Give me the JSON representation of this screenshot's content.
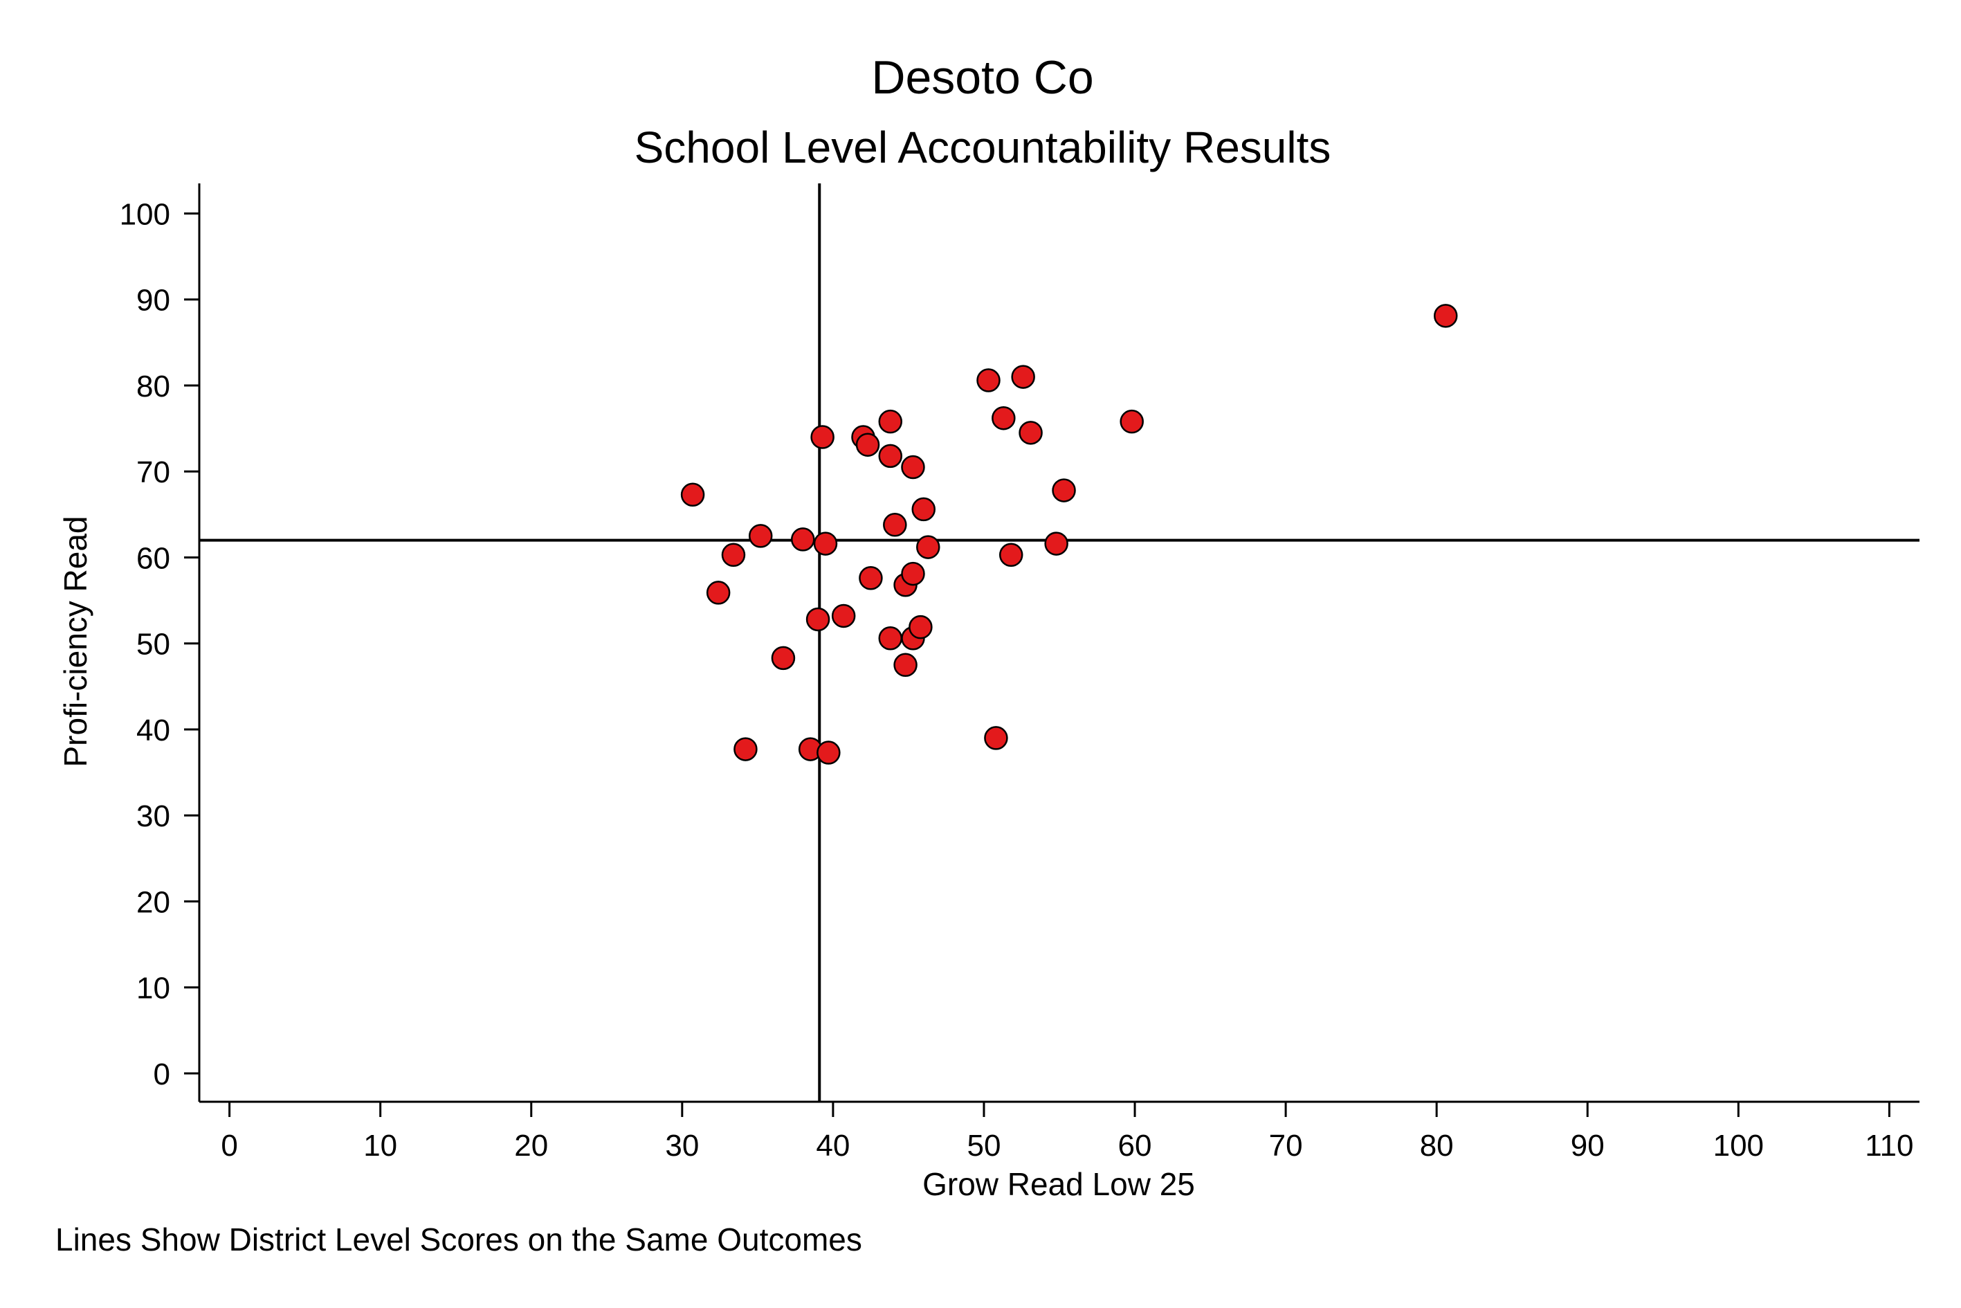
{
  "chart_data": {
    "type": "scatter",
    "title": "Desoto Co",
    "subtitle": "School Level Accountability Results",
    "xlabel": "Grow Read Low 25",
    "ylabel": "Profi-ciency Read",
    "note": "Lines Show District Level Scores on the Same Outcomes",
    "xlim": [
      -2,
      112
    ],
    "ylim": [
      -3.3,
      103.5
    ],
    "xticks": [
      0,
      10,
      20,
      30,
      40,
      50,
      60,
      70,
      80,
      90,
      100,
      110
    ],
    "yticks": [
      0,
      10,
      20,
      30,
      40,
      50,
      60,
      70,
      80,
      90,
      100
    ],
    "grid": false,
    "reference_lines": {
      "x": 39.1,
      "y": 62
    },
    "marker_color": "#e31a1c",
    "points": [
      {
        "x": 30.7,
        "y": 67.3
      },
      {
        "x": 32.4,
        "y": 55.9
      },
      {
        "x": 33.4,
        "y": 60.3
      },
      {
        "x": 34.2,
        "y": 37.7
      },
      {
        "x": 35.2,
        "y": 62.5
      },
      {
        "x": 36.7,
        "y": 48.3
      },
      {
        "x": 38.0,
        "y": 62.1
      },
      {
        "x": 38.5,
        "y": 37.7
      },
      {
        "x": 39.0,
        "y": 52.8
      },
      {
        "x": 39.3,
        "y": 74.0
      },
      {
        "x": 39.5,
        "y": 61.6
      },
      {
        "x": 39.7,
        "y": 37.3
      },
      {
        "x": 40.7,
        "y": 53.2
      },
      {
        "x": 42.0,
        "y": 74.0
      },
      {
        "x": 42.3,
        "y": 73.1
      },
      {
        "x": 42.5,
        "y": 57.6
      },
      {
        "x": 43.8,
        "y": 75.8
      },
      {
        "x": 43.8,
        "y": 71.8
      },
      {
        "x": 43.8,
        "y": 50.6
      },
      {
        "x": 44.1,
        "y": 63.8
      },
      {
        "x": 44.8,
        "y": 56.8
      },
      {
        "x": 44.8,
        "y": 47.5
      },
      {
        "x": 45.3,
        "y": 70.5
      },
      {
        "x": 45.3,
        "y": 58.1
      },
      {
        "x": 45.3,
        "y": 50.6
      },
      {
        "x": 45.8,
        "y": 51.9
      },
      {
        "x": 46.0,
        "y": 65.6
      },
      {
        "x": 46.3,
        "y": 61.2
      },
      {
        "x": 50.3,
        "y": 80.6
      },
      {
        "x": 50.8,
        "y": 39.0
      },
      {
        "x": 51.3,
        "y": 76.2
      },
      {
        "x": 51.8,
        "y": 60.3
      },
      {
        "x": 52.6,
        "y": 81.0
      },
      {
        "x": 53.1,
        "y": 74.5
      },
      {
        "x": 54.8,
        "y": 61.6
      },
      {
        "x": 55.3,
        "y": 67.8
      },
      {
        "x": 59.8,
        "y": 75.8
      },
      {
        "x": 80.6,
        "y": 88.1
      }
    ]
  }
}
